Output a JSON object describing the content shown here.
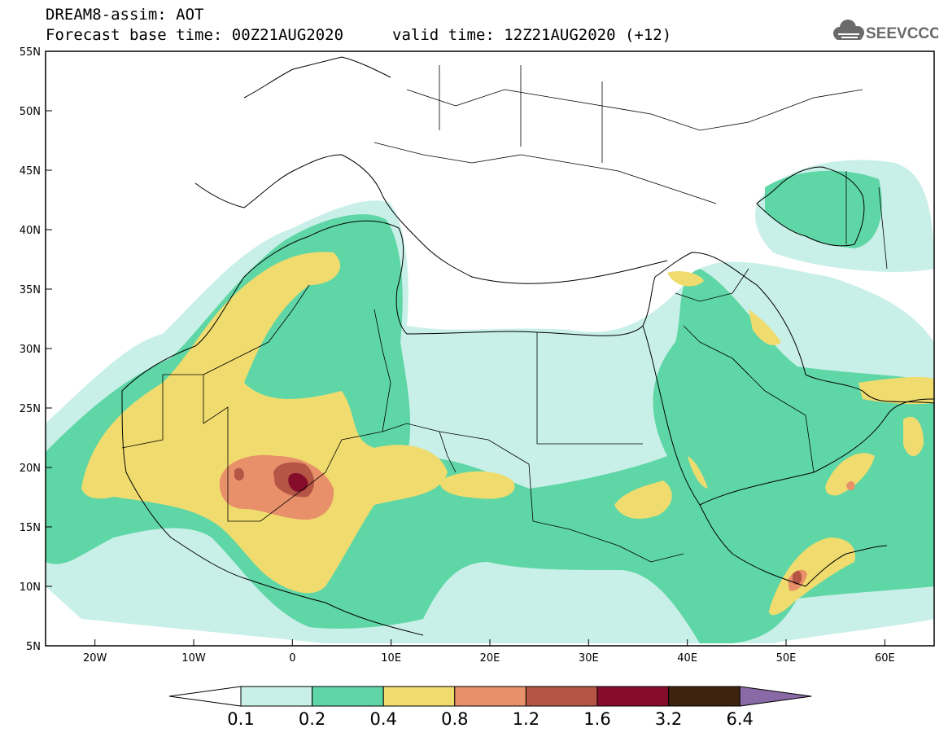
{
  "title": {
    "line1": "DREAM8-assim: AOT",
    "line2_base": "Forecast base time: 00Z21AUG2020",
    "line2_valid": "valid time: 12Z21AUG2020 (+12)"
  },
  "logo": {
    "text": "SEEVCCC",
    "icon": "cloud-logo-icon",
    "color": "#6a6a6a"
  },
  "map": {
    "lon_range": [
      -25,
      65
    ],
    "lat_range": [
      5,
      55
    ],
    "lon_ticks": [
      {
        "value": -20,
        "label": "20W"
      },
      {
        "value": -10,
        "label": "10W"
      },
      {
        "value": 0,
        "label": "0"
      },
      {
        "value": 10,
        "label": "10E"
      },
      {
        "value": 20,
        "label": "20E"
      },
      {
        "value": 30,
        "label": "30E"
      },
      {
        "value": 40,
        "label": "40E"
      },
      {
        "value": 50,
        "label": "50E"
      },
      {
        "value": 60,
        "label": "60E"
      }
    ],
    "lat_ticks": [
      {
        "value": 55,
        "label": "55N"
      },
      {
        "value": 50,
        "label": "50N"
      },
      {
        "value": 45,
        "label": "45N"
      },
      {
        "value": 40,
        "label": "40N"
      },
      {
        "value": 35,
        "label": "35N"
      },
      {
        "value": 30,
        "label": "30N"
      },
      {
        "value": 25,
        "label": "25N"
      },
      {
        "value": 20,
        "label": "20N"
      },
      {
        "value": 15,
        "label": "15N"
      },
      {
        "value": 10,
        "label": "10N"
      },
      {
        "value": 5,
        "label": "5N"
      }
    ]
  },
  "colorbar": {
    "labels": [
      "0.1",
      "0.2",
      "0.4",
      "0.8",
      "1.2",
      "1.6",
      "3.2",
      "6.4"
    ],
    "under_color": "#ffffff",
    "colors": [
      "#c8f0e8",
      "#5fd6a6",
      "#f0dc6e",
      "#e8906a",
      "#b45545",
      "#860c2c",
      "#3e2410"
    ],
    "over_color": "#8a6aa6"
  },
  "aot_levels": {
    "l01": "#c8f0e8",
    "l02": "#5fd6a6",
    "l04": "#f0dc6e",
    "l08": "#e8906a",
    "l12": "#b45545",
    "l16": "#860c2c"
  }
}
